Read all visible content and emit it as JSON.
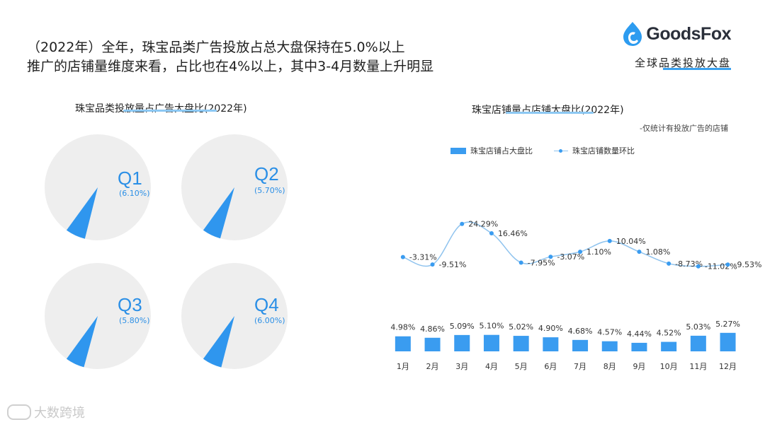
{
  "headline": {
    "line1": "（2022年）全年，珠宝品类广告投放占总大盘保持在5.0%以上",
    "line2": "推广的店铺量维度来看，占比也在4%以上，其中3-4月数量上升明显"
  },
  "brand": {
    "name": "GoodsFox",
    "tagline": "全球品类投放大盘",
    "accent": "#3aa0ee"
  },
  "watermark": {
    "text": "大数跨境"
  },
  "colors": {
    "pie_bg": "#eeeeee",
    "pie_slice": "#2f96ee",
    "bar": "#3a9cf0",
    "line": "#8fc3ee",
    "dot": "#3a9cf0"
  },
  "left_chart": {
    "title": "珠宝品类投放量占广告大盘比(2022年)"
  },
  "right_chart": {
    "title": "珠宝店铺量占店铺大盘比(2022年)",
    "note": "-仅统计有投放广告的店铺",
    "legend_bar": "珠宝店铺占大盘比",
    "legend_line": "珠宝店铺数量环比"
  },
  "chart_data": [
    {
      "type": "pie",
      "title": "珠宝品类投放量占广告大盘比(2022年)",
      "categories": [
        "Q1",
        "Q2",
        "Q3",
        "Q4"
      ],
      "values": [
        6.1,
        5.7,
        5.8,
        6.0
      ],
      "labels": [
        "(6.10%)",
        "(5.70%)",
        "(5.80%)",
        "(6.00%)"
      ],
      "unit": "%"
    },
    {
      "type": "bar",
      "title": "珠宝店铺量占店铺大盘比(2022年)",
      "categories": [
        "1月",
        "2月",
        "3月",
        "4月",
        "5月",
        "6月",
        "7月",
        "8月",
        "9月",
        "10月",
        "11月",
        "12月"
      ],
      "series": [
        {
          "name": "珠宝店铺占大盘比",
          "type": "bar",
          "values": [
            4.98,
            4.86,
            5.09,
            5.1,
            5.02,
            4.9,
            4.68,
            4.57,
            4.44,
            4.52,
            5.03,
            5.27
          ],
          "labels": [
            "4.98%",
            "4.86%",
            "5.09%",
            "5.10%",
            "5.02%",
            "4.90%",
            "4.68%",
            "4.57%",
            "4.44%",
            "4.52%",
            "5.03%",
            "5.27%"
          ]
        },
        {
          "name": "珠宝店铺数量环比",
          "type": "line",
          "values": [
            -3.31,
            -9.51,
            24.29,
            16.46,
            -7.95,
            -3.07,
            1.1,
            10.04,
            1.08,
            -8.73,
            -11.02,
            -9.53
          ],
          "labels": [
            "-3.31%",
            "-9.51%",
            "24.29%",
            "16.46%",
            "-7.95%",
            "-3.07%",
            "1.10%",
            "10.04%",
            "1.08%",
            "-8.73%",
            "-11.02%",
            "-9.53%"
          ]
        }
      ],
      "note": "-仅统计有投放广告的店铺",
      "legend": "top-left"
    }
  ]
}
